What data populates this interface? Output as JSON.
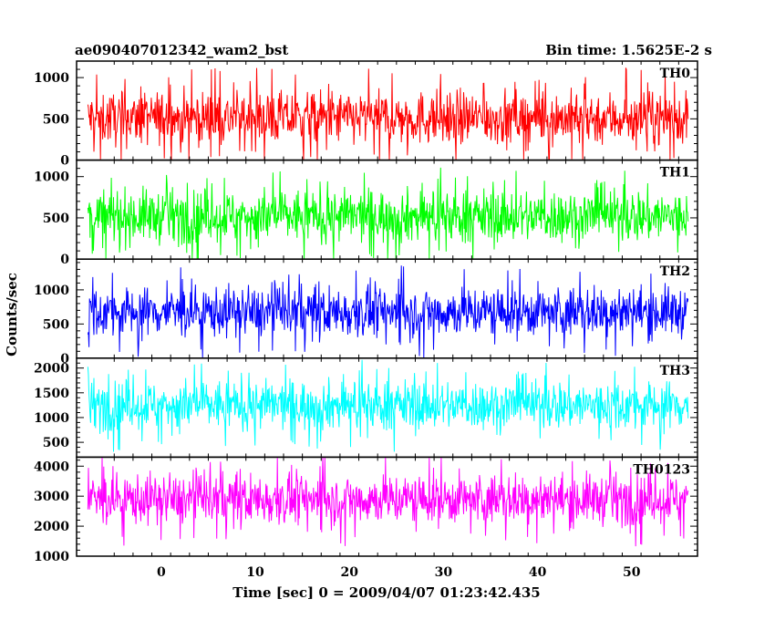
{
  "chart_data": {
    "type": "line",
    "title_left": "ae090407012342_wam2_bst",
    "title_right": "Bin time: 1.5625E-2 s",
    "xlabel": "Time [sec] 0 = 2009/04/07 01:23:42.435",
    "ylabel": "Counts/sec",
    "xlim": [
      -9,
      57
    ],
    "x_ticks": [
      0,
      10,
      20,
      30,
      40,
      50
    ],
    "x_range_data": [
      -7.8,
      56.0
    ],
    "bin_time": 0.015625,
    "panels": [
      {
        "name": "TH0",
        "color": "#ff0000",
        "ylim": [
          0,
          1200
        ],
        "y_ticks": [
          0,
          500,
          1000
        ],
        "mean": 510,
        "spread": 290,
        "min": 0,
        "max": 1200
      },
      {
        "name": "TH1",
        "color": "#00ff00",
        "ylim": [
          0,
          1200
        ],
        "y_ticks": [
          0,
          500,
          1000
        ],
        "mean": 520,
        "spread": 290,
        "min": 0,
        "max": 1200
      },
      {
        "name": "TH2",
        "color": "#0000ff",
        "ylim": [
          0,
          1450
        ],
        "y_ticks": [
          0,
          500,
          1000
        ],
        "mean": 680,
        "spread": 330,
        "min": 0,
        "max": 1450
      },
      {
        "name": "TH3",
        "color": "#00ffff",
        "ylim": [
          200,
          2200
        ],
        "y_ticks": [
          500,
          1000,
          1500,
          2000
        ],
        "mean": 1250,
        "spread": 450,
        "min": 230,
        "max": 2200
      },
      {
        "name": "TH0123",
        "color": "#ff00ff",
        "ylim": [
          1000,
          4300
        ],
        "y_ticks": [
          1000,
          2000,
          3000,
          4000
        ],
        "mean": 2900,
        "spread": 750,
        "min": 1000,
        "max": 4300
      }
    ]
  }
}
